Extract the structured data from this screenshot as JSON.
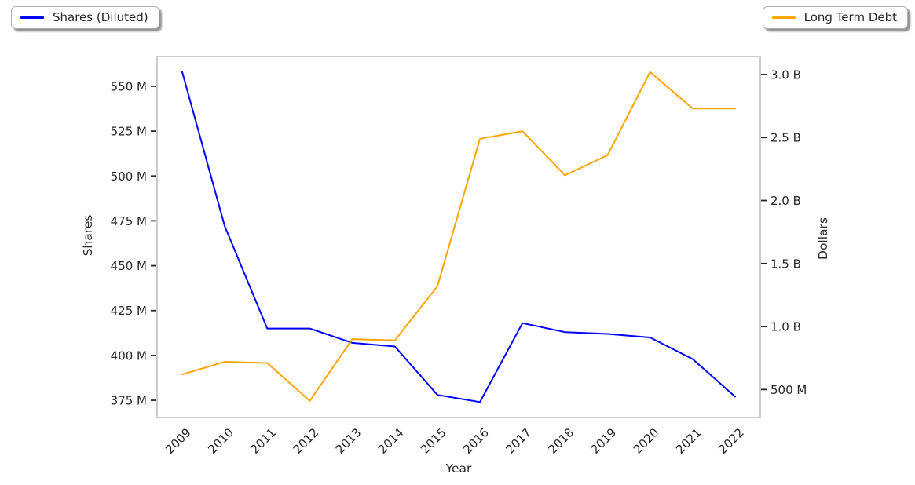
{
  "figure": {
    "background": "#ffffff",
    "text_color": "#262626",
    "spine_color": "#cccccc",
    "tick_color": "#262626"
  },
  "legends": [
    {
      "label": "Shares (Diluted)",
      "color": "#0000ff"
    },
    {
      "label": "Long Term Debt",
      "color": "#ffa500"
    }
  ],
  "chart_data": {
    "type": "line",
    "title": "",
    "xlabel": "Year",
    "ylabel_left": "Shares",
    "ylabel_right": "Dollars",
    "grid": false,
    "legend_position": [
      "outside-top-left",
      "outside-top-right"
    ],
    "categories": [
      "2009",
      "2010",
      "2011",
      "2012",
      "2013",
      "2014",
      "2015",
      "2016",
      "2017",
      "2018",
      "2019",
      "2020",
      "2021",
      "2022"
    ],
    "series": [
      {
        "name": "Shares (Diluted)",
        "yaxis": "left",
        "color": "#0000ff",
        "unit": "shares (millions)",
        "values_millions": [
          558,
          472,
          415,
          415,
          407,
          405,
          378,
          374,
          418,
          413,
          412,
          410,
          398,
          377
        ]
      },
      {
        "name": "Long Term Debt",
        "yaxis": "right",
        "color": "#ffa500",
        "unit": "dollars (billions)",
        "values_billions": [
          0.62,
          0.72,
          0.71,
          0.41,
          0.9,
          0.89,
          1.32,
          2.49,
          2.55,
          2.2,
          2.36,
          3.02,
          2.73,
          2.73
        ]
      }
    ],
    "left_axis": {
      "title": "Shares",
      "range_millions": [
        365.4,
        566.6
      ],
      "ticks": [
        {
          "label": "550 M",
          "value": 550
        },
        {
          "label": "525 M",
          "value": 525
        },
        {
          "label": "500 M",
          "value": 500
        },
        {
          "label": "475 M",
          "value": 475
        },
        {
          "label": "450 M",
          "value": 450
        },
        {
          "label": "425 M",
          "value": 425
        },
        {
          "label": "400 M",
          "value": 400
        },
        {
          "label": "375 M",
          "value": 375
        }
      ]
    },
    "right_axis": {
      "title": "Dollars",
      "range_billions": [
        0.278,
        3.143
      ],
      "ticks": [
        {
          "label": "3.0 B",
          "value": 3.0
        },
        {
          "label": "2.5 B",
          "value": 2.5
        },
        {
          "label": "2.0 B",
          "value": 2.0
        },
        {
          "label": "1.5 B",
          "value": 1.5
        },
        {
          "label": "1.0 B",
          "value": 1.0
        },
        {
          "label": "500 M",
          "value": 0.5
        }
      ]
    }
  }
}
